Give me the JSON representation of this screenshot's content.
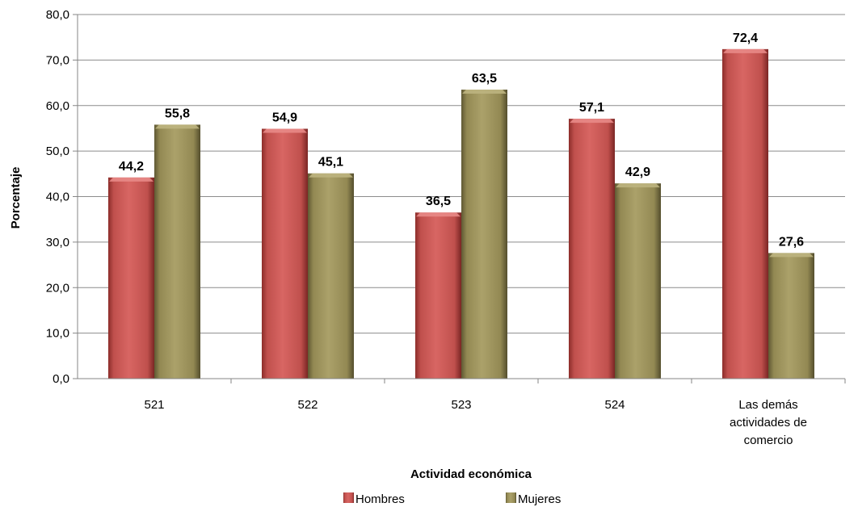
{
  "chart_data": {
    "type": "bar",
    "categories": [
      "521",
      "522",
      "523",
      "524",
      "Las demás actividades de comercio"
    ],
    "category_lines": [
      [
        "521"
      ],
      [
        "522"
      ],
      [
        "523"
      ],
      [
        "524"
      ],
      [
        "Las demás",
        "actividades de",
        "comercio"
      ]
    ],
    "series": [
      {
        "name": "Hombres",
        "values": [
          44.2,
          54.9,
          36.5,
          57.1,
          72.4
        ],
        "labels": [
          "44,2",
          "54,9",
          "36,5",
          "57,1",
          "72,4"
        ],
        "color": "#c0504d"
      },
      {
        "name": "Mujeres",
        "values": [
          55.8,
          45.1,
          63.5,
          42.9,
          27.6
        ],
        "labels": [
          "55,8",
          "45,1",
          "63,5",
          "42,9",
          "27,6"
        ],
        "color": "#938953"
      }
    ],
    "xlabel": "Actividad económica",
    "ylabel": "Porcentaje",
    "ylim": [
      0,
      80
    ],
    "yticks": [
      0,
      10,
      20,
      30,
      40,
      50,
      60,
      70,
      80
    ],
    "ytick_labels": [
      "0,0",
      "10,0",
      "20,0",
      "30,0",
      "40,0",
      "50,0",
      "60,0",
      "70,0",
      "80,0"
    ],
    "grid": true,
    "legend_position": "bottom"
  }
}
